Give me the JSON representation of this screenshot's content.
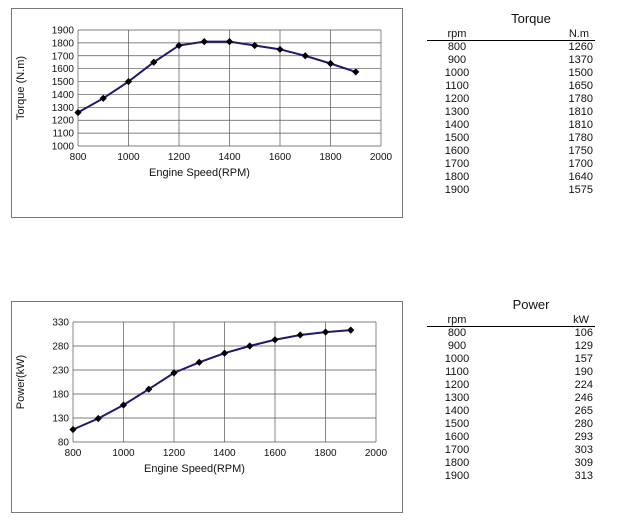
{
  "chart_data": [
    {
      "type": "line",
      "xlabel": "Engine Speed(RPM)",
      "ylabel": "Torque (N.m)",
      "xlim": [
        800,
        2000
      ],
      "ylim": [
        1000,
        1900
      ],
      "xticks": [
        800,
        1000,
        1200,
        1400,
        1600,
        1800,
        2000
      ],
      "yticks": [
        1000,
        1100,
        1200,
        1300,
        1400,
        1500,
        1600,
        1700,
        1800,
        1900
      ],
      "grid": true,
      "x": [
        800,
        900,
        1000,
        1100,
        1200,
        1300,
        1400,
        1500,
        1600,
        1700,
        1800,
        1900
      ],
      "series": [
        {
          "values": [
            1260,
            1370,
            1500,
            1650,
            1780,
            1810,
            1810,
            1780,
            1750,
            1700,
            1640,
            1575
          ]
        }
      ]
    },
    {
      "type": "line",
      "xlabel": "Engine Speed(RPM)",
      "ylabel": "Power(kW)",
      "xlim": [
        800,
        2000
      ],
      "ylim": [
        80,
        330
      ],
      "xticks": [
        800,
        1000,
        1200,
        1400,
        1600,
        1800,
        2000
      ],
      "yticks": [
        80,
        130,
        180,
        230,
        280,
        330
      ],
      "grid": true,
      "x": [
        800,
        900,
        1000,
        1100,
        1200,
        1300,
        1400,
        1500,
        1600,
        1700,
        1800,
        1900
      ],
      "series": [
        {
          "values": [
            106,
            129,
            157,
            190,
            224,
            246,
            265,
            280,
            293,
            303,
            309,
            313
          ]
        }
      ]
    }
  ],
  "tables": {
    "torque": {
      "title": "Torque",
      "columns": [
        "rpm",
        "N.m"
      ],
      "rows": [
        [
          "800",
          "1260"
        ],
        [
          "900",
          "1370"
        ],
        [
          "1000",
          "1500"
        ],
        [
          "1100",
          "1650"
        ],
        [
          "1200",
          "1780"
        ],
        [
          "1300",
          "1810"
        ],
        [
          "1400",
          "1810"
        ],
        [
          "1500",
          "1780"
        ],
        [
          "1600",
          "1750"
        ],
        [
          "1700",
          "1700"
        ],
        [
          "1800",
          "1640"
        ],
        [
          "1900",
          "1575"
        ]
      ]
    },
    "power": {
      "title": "Power",
      "columns": [
        "rpm",
        "kW"
      ],
      "rows": [
        [
          "800",
          "106"
        ],
        [
          "900",
          "129"
        ],
        [
          "1000",
          "157"
        ],
        [
          "1100",
          "190"
        ],
        [
          "1200",
          "224"
        ],
        [
          "1300",
          "246"
        ],
        [
          "1400",
          "265"
        ],
        [
          "1500",
          "280"
        ],
        [
          "1600",
          "293"
        ],
        [
          "1700",
          "303"
        ],
        [
          "1800",
          "309"
        ],
        [
          "1900",
          "313"
        ]
      ]
    }
  },
  "colors": {
    "series": "#1c1a6e",
    "marker": "#000000",
    "grid": "#555555"
  }
}
